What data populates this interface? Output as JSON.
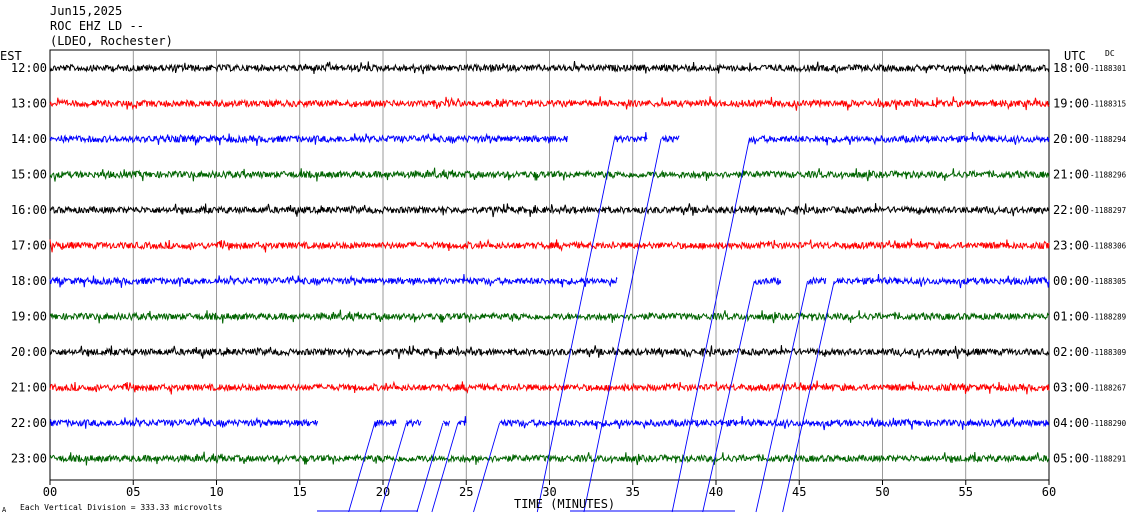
{
  "header": {
    "date": "Jun15,2025",
    "station": "ROC EHZ LD --",
    "network": "(LDEO, Rochester)"
  },
  "left_axis_label": "EST",
  "right_axis_label": "UTC",
  "dc_label": "DC",
  "footer_note": "Each Vertical Division =  333.33 microvolts",
  "colors": {
    "black": "#000000",
    "red": "#ff0000",
    "blue": "#0000ff",
    "green": "#006400",
    "grid": "#808080"
  },
  "chart_data": {
    "type": "line",
    "xlabel": "TIME (MINUTES)",
    "xlim": [
      0,
      60
    ],
    "x_ticks": [
      "00",
      "05",
      "10",
      "15",
      "20",
      "25",
      "30",
      "35",
      "40",
      "45",
      "50",
      "55",
      "60"
    ],
    "traces": [
      {
        "est": "12:00",
        "utc": "18:00",
        "dc": "-1188301",
        "color": "black",
        "gaps": []
      },
      {
        "est": "13:00",
        "utc": "19:00",
        "dc": "-1188315",
        "color": "red",
        "gaps": []
      },
      {
        "est": "14:00",
        "utc": "20:00",
        "dc": "-1188294",
        "color": "blue",
        "gaps": [
          [
            31.1,
            33.9
          ],
          [
            35.9,
            36.7
          ],
          [
            37.8,
            42.0
          ]
        ]
      },
      {
        "est": "15:00",
        "utc": "21:00",
        "dc": "-1188296",
        "color": "green",
        "gaps": []
      },
      {
        "est": "16:00",
        "utc": "22:00",
        "dc": "-1188297",
        "color": "black",
        "gaps": []
      },
      {
        "est": "17:00",
        "utc": "23:00",
        "dc": "-1188306",
        "color": "red",
        "gaps": []
      },
      {
        "est": "18:00",
        "utc": "00:00",
        "dc": "-1188305",
        "color": "blue",
        "gaps": [
          [
            34.1,
            42.3
          ],
          [
            43.9,
            45.5
          ],
          [
            46.6,
            47.1
          ]
        ]
      },
      {
        "est": "19:00",
        "utc": "01:00",
        "dc": "-1188289",
        "color": "green",
        "gaps": []
      },
      {
        "est": "20:00",
        "utc": "02:00",
        "dc": "-1188309",
        "color": "black",
        "gaps": []
      },
      {
        "est": "21:00",
        "utc": "03:00",
        "dc": "-1188267",
        "color": "red",
        "gaps": []
      },
      {
        "est": "22:00",
        "utc": "04:00",
        "dc": "-1188290",
        "color": "blue",
        "gaps": [
          [
            16.1,
            19.5
          ],
          [
            20.8,
            21.4
          ],
          [
            22.3,
            23.6
          ],
          [
            24.0,
            24.5
          ],
          [
            25.0,
            27.0
          ]
        ]
      },
      {
        "est": "23:00",
        "utc": "05:00",
        "dc": "-1188291",
        "color": "green",
        "gaps": []
      }
    ]
  }
}
